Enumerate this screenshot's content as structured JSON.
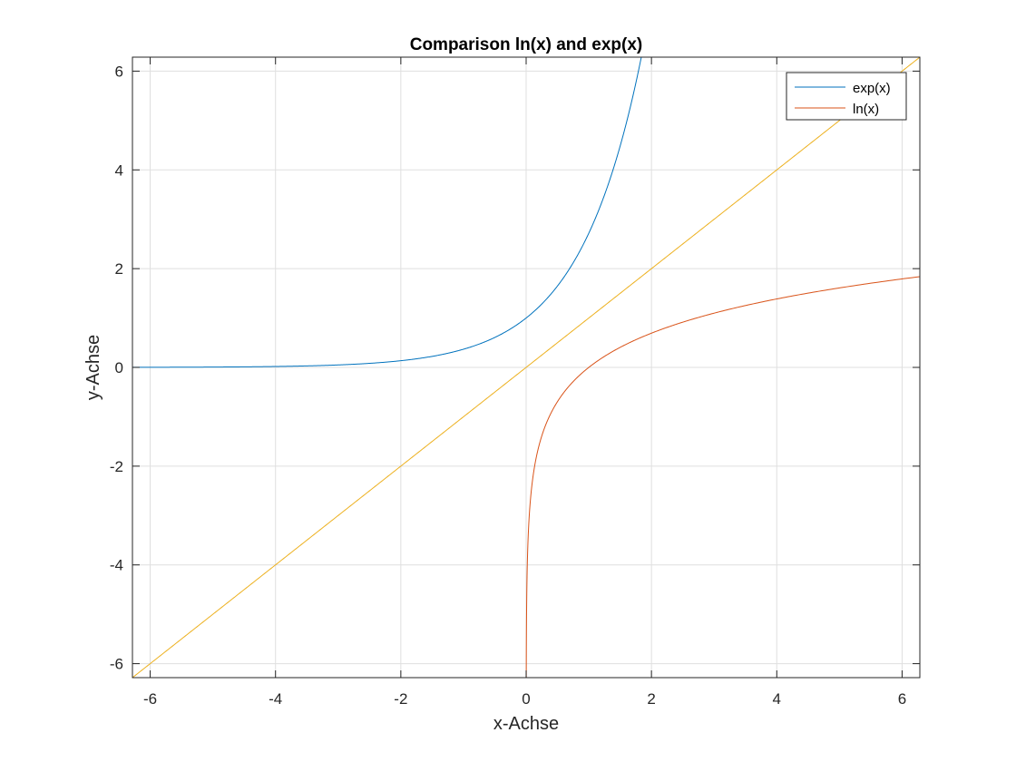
{
  "chart_data": {
    "type": "line",
    "title": "Comparison ln(x) and exp(x)",
    "xlabel": "x-Achse",
    "ylabel": "y-Achse",
    "xlim": [
      -6.2832,
      6.2832
    ],
    "ylim": [
      -6.2832,
      6.2832
    ],
    "xticks": [
      -6,
      -4,
      -2,
      0,
      2,
      4,
      6
    ],
    "yticks": [
      -6,
      -4,
      -2,
      0,
      2,
      4,
      6
    ],
    "x_tick_labels": [
      "-6",
      "-4",
      "-2",
      "0",
      "2",
      "4",
      "6"
    ],
    "y_tick_labels": [
      "-6",
      "-4",
      "-2",
      "0",
      "2",
      "4",
      "6"
    ],
    "grid": true,
    "legend": {
      "placement": "top-right",
      "entries": [
        "exp(x)",
        "ln(x)"
      ]
    },
    "series": [
      {
        "name": "exp(x)",
        "color": "#0072BD",
        "function": "exp",
        "x": [
          -6.28,
          -5,
          -4,
          -3,
          -2,
          -1.5,
          -1,
          -0.5,
          0,
          0.5,
          1,
          1.5,
          1.8
        ],
        "y": [
          0.002,
          0.007,
          0.018,
          0.05,
          0.135,
          0.223,
          0.368,
          0.607,
          1,
          1.649,
          2.718,
          4.482,
          6.05
        ]
      },
      {
        "name": "ln(x)",
        "color": "#D95319",
        "function": "ln",
        "x": [
          0.002,
          0.05,
          0.1,
          0.25,
          0.5,
          1,
          1.5,
          2,
          3,
          4,
          5,
          6.28
        ],
        "y": [
          -6.21,
          -3.0,
          -2.3,
          -1.39,
          -0.69,
          0,
          0.41,
          0.69,
          1.1,
          1.39,
          1.61,
          1.84
        ]
      },
      {
        "color": "#EDB120",
        "function": "identity",
        "x": [
          -6.2832,
          6.2832
        ],
        "y": [
          -6.2832,
          6.2832
        ]
      }
    ]
  }
}
